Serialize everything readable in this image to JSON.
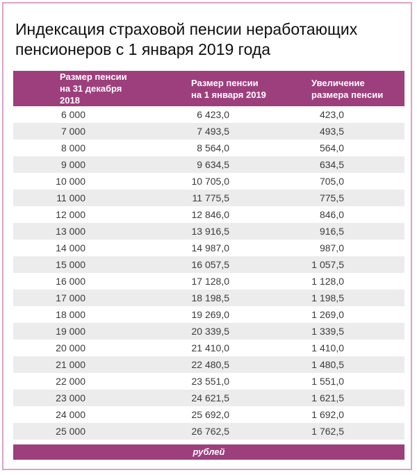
{
  "page": {
    "title": "Индексация страховой пенсии неработающих пенсионеров с 1 января 2019 года"
  },
  "colors": {
    "accent_purple": "#9d3f7d",
    "frame_pink": "#dba2c8",
    "row_alt_gray": "#ececec",
    "header_text": "#ffffff",
    "body_text": "#3a3a3a"
  },
  "table": {
    "headers": [
      {
        "line1": "Размер пенсии",
        "line2": "на 31 декабря 2018"
      },
      {
        "line1": "Размер пенсии",
        "line2": "на 1 января 2019"
      },
      {
        "line1": "Увеличение",
        "line2": "размера пенсии"
      }
    ],
    "rows": [
      [
        "6 000",
        "6 423,0",
        "423,0"
      ],
      [
        "7 000",
        "7 493,5",
        "493,5"
      ],
      [
        "8 000",
        "8 564,0",
        "564,0"
      ],
      [
        "9 000",
        "9 634,5",
        "634,5"
      ],
      [
        "10 000",
        "10 705,0",
        "705,0"
      ],
      [
        "11 000",
        "11 775,5",
        "775,5"
      ],
      [
        "12 000",
        "12 846,0",
        "846,0"
      ],
      [
        "13 000",
        "13 916,5",
        "916,5"
      ],
      [
        "14 000",
        "14 987,0",
        "987,0"
      ],
      [
        "15 000",
        "16 057,5",
        "1 057,5"
      ],
      [
        "16 000",
        "17 128,0",
        "1 128,0"
      ],
      [
        "17 000",
        "18 198,5",
        "1 198,5"
      ],
      [
        "18 000",
        "19 269,0",
        "1 269,0"
      ],
      [
        "19 000",
        "20 339,5",
        "1 339,5"
      ],
      [
        "20 000",
        "21 410,0",
        "1 410,0"
      ],
      [
        "21 000",
        "22 480,5",
        "1 480,5"
      ],
      [
        "22 000",
        "23 551,0",
        "1 551,0"
      ],
      [
        "23 000",
        "24 621,5",
        "1 621,5"
      ],
      [
        "24 000",
        "25 692,0",
        "1 692,0"
      ],
      [
        "25 000",
        "26 762,5",
        "1 762,5"
      ]
    ],
    "footer_units": "рублей"
  },
  "chart_data": {
    "type": "table",
    "title": "Индексация страховой пенсии неработающих пенсионеров с 1 января 2019 года",
    "columns": [
      "Размер пенсии на 31 декабря 2018",
      "Размер пенсии на 1 января 2019",
      "Увеличение размера пенсии"
    ],
    "units": "рублей",
    "rows": [
      [
        6000,
        6423.0,
        423.0
      ],
      [
        7000,
        7493.5,
        493.5
      ],
      [
        8000,
        8564.0,
        564.0
      ],
      [
        9000,
        9634.5,
        634.5
      ],
      [
        10000,
        10705.0,
        705.0
      ],
      [
        11000,
        11775.5,
        775.5
      ],
      [
        12000,
        12846.0,
        846.0
      ],
      [
        13000,
        13916.5,
        916.5
      ],
      [
        14000,
        14987.0,
        987.0
      ],
      [
        15000,
        16057.5,
        1057.5
      ],
      [
        16000,
        17128.0,
        1128.0
      ],
      [
        17000,
        18198.5,
        1198.5
      ],
      [
        18000,
        19269.0,
        1269.0
      ],
      [
        19000,
        20339.5,
        1339.5
      ],
      [
        20000,
        21410.0,
        1410.0
      ],
      [
        21000,
        22480.5,
        1480.5
      ],
      [
        22000,
        23551.0,
        1551.0
      ],
      [
        23000,
        24621.5,
        1621.5
      ],
      [
        24000,
        25692.0,
        1692.0
      ],
      [
        25000,
        26762.5,
        1762.5
      ]
    ]
  }
}
